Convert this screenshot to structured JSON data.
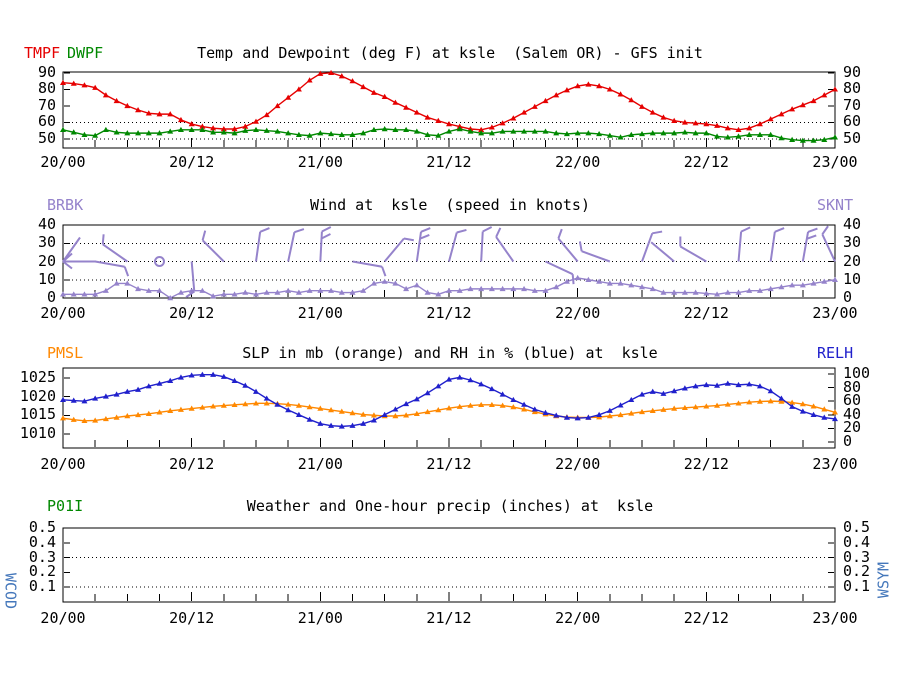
{
  "station": "ksle",
  "station_name": "Salem OR",
  "model": "GFS",
  "colors": {
    "temp": "#e60000",
    "dewpoint": "#008800",
    "wind": "#9583cb",
    "pressure": "#ff8800",
    "humidity": "#2020cc",
    "precip_label": "#008800",
    "side_label": "#4477bb",
    "axis": "#000000",
    "background": "#ffffff"
  },
  "side_labels": {
    "left": "WCOD",
    "right": "WSYM"
  },
  "x_axis": {
    "labels": [
      "20/00",
      "20/12",
      "21/00",
      "21/12",
      "22/00",
      "22/12",
      "23/00"
    ],
    "label_hours": [
      0,
      12,
      24,
      36,
      48,
      60,
      72
    ],
    "minor_tick_step_hours": 3,
    "hour_range": [
      0,
      72
    ]
  },
  "chart_data": [
    {
      "id": "temp_dew",
      "type": "line",
      "title": "Temp and Dewpoint (deg F) at ksle  (Salem OR) - GFS init",
      "legend_left": [
        "TMPF",
        "DWPF"
      ],
      "ylim": [
        44.5,
        90.5
      ],
      "yticks": [
        50,
        60,
        70,
        80,
        90
      ],
      "dotted_gridlines": [
        50,
        60
      ],
      "series": [
        {
          "name": "TMPF",
          "color_key": "temp",
          "values": [
            84,
            83.5,
            82.5,
            81,
            76.5,
            73,
            70,
            67.5,
            65.5,
            65,
            65,
            61.5,
            59,
            57.5,
            56.5,
            56,
            56,
            57.5,
            60.5,
            64.5,
            70,
            75,
            80,
            85.5,
            89.5,
            90,
            88,
            85,
            81.5,
            78,
            75.5,
            72,
            69,
            66,
            63,
            61,
            59,
            57.5,
            56,
            55.5,
            57,
            59.5,
            62.5,
            66,
            69.5,
            73,
            76.5,
            79.5,
            82,
            83,
            82,
            80,
            77,
            73.5,
            69.5,
            66,
            63,
            61,
            60,
            59.5,
            59,
            58,
            56.5,
            55.5,
            56.5,
            59,
            62,
            65,
            68,
            70.5,
            73,
            76.5,
            80
          ]
        },
        {
          "name": "DWPF",
          "color_key": "dewpoint",
          "values": [
            55.5,
            54,
            52.5,
            52,
            55.5,
            54,
            53.5,
            53.5,
            53.5,
            53.5,
            54.5,
            55.5,
            55.5,
            55.5,
            54,
            54,
            53.5,
            55,
            55.5,
            55,
            54.5,
            53.5,
            52.5,
            52,
            53.5,
            53,
            52.5,
            52.5,
            53.5,
            55.5,
            56,
            55.5,
            55.5,
            54.5,
            52.5,
            52,
            54.5,
            56,
            54.5,
            53.5,
            53.5,
            54.5,
            54.5,
            54.5,
            54.5,
            54.5,
            53.5,
            53,
            53.5,
            53.5,
            53,
            52,
            51,
            52.5,
            53,
            53.5,
            53.5,
            53.5,
            54,
            53.5,
            53.5,
            51.5,
            51,
            51.5,
            52.5,
            52.5,
            52.5,
            50.5,
            49.5,
            49,
            49,
            49.5,
            51
          ]
        }
      ]
    },
    {
      "id": "wind",
      "type": "line",
      "title": "Wind at  ksle  (speed in knots)",
      "legend_left": [
        "BRBK"
      ],
      "legend_right": [
        "SKNT"
      ],
      "ylim": [
        0,
        40
      ],
      "yticks": [
        0,
        10,
        20,
        30,
        40
      ],
      "dotted_gridlines": [
        10,
        20,
        30
      ],
      "series": [
        {
          "name": "SKNT",
          "color_key": "wind",
          "values": [
            2,
            2,
            2,
            2,
            4,
            8,
            8,
            5,
            4,
            4,
            0,
            3,
            4,
            4,
            1,
            2,
            2,
            3,
            2,
            3,
            3,
            4,
            3,
            4,
            4,
            4,
            3,
            3,
            4,
            8,
            9,
            8,
            5,
            7,
            3,
            2,
            4,
            4,
            5,
            5,
            5,
            5,
            5,
            5,
            4,
            4,
            6,
            9,
            11,
            10,
            9,
            8,
            8,
            7,
            6,
            5,
            3,
            3,
            3,
            3,
            2.5,
            2,
            3,
            3,
            4,
            4,
            5,
            6,
            7,
            7,
            8,
            9,
            10
          ]
        }
      ],
      "barbs": {
        "y_level": 20,
        "items": [
          {
            "h": 0,
            "segs": [
              [
                0,
                0,
                33,
                0
              ],
              [
                0,
                0,
                17,
                -24
              ],
              [
                0,
                0,
                9,
                -8
              ],
              [
                0,
                0,
                9,
                7
              ]
            ]
          },
          {
            "h": 3,
            "ang": 100,
            "feat": 1
          },
          {
            "h": 6,
            "ang": -55,
            "feat": 1
          },
          {
            "h": 9,
            "calm": true
          },
          {
            "h": 12,
            "ang": 175,
            "feat": 1
          },
          {
            "h": 15,
            "ang": -45,
            "feat": 1
          },
          {
            "h": 18,
            "ang": 8,
            "feat": 1
          },
          {
            "h": 21,
            "ang": 12,
            "feat": 1
          },
          {
            "h": 24,
            "ang": 3,
            "feat": 2
          },
          {
            "h": 27,
            "ang": 100,
            "feat": 1
          },
          {
            "h": 30,
            "ang": 40,
            "feat": 1
          },
          {
            "h": 33,
            "ang": 8,
            "feat": 2
          },
          {
            "h": 36,
            "ang": 15,
            "feat": 1
          },
          {
            "h": 39,
            "ang": 3,
            "feat": 1
          },
          {
            "h": 42,
            "ang": -35,
            "feat": 1
          },
          {
            "h": 45,
            "ang": 115,
            "feat": 1
          },
          {
            "h": 48,
            "ang": -40,
            "feat": 1
          },
          {
            "h": 51,
            "ang": -70,
            "feat": 1
          },
          {
            "h": 54,
            "ang": 20,
            "feat": 1
          },
          {
            "h": 57,
            "ang": -50,
            "feat": 0
          },
          {
            "h": 60,
            "ang": -60,
            "feat": 1
          },
          {
            "h": 63,
            "ang": 5,
            "feat": 1
          },
          {
            "h": 66,
            "ang": 8,
            "feat": 1
          },
          {
            "h": 69,
            "ang": 10,
            "feat": 2
          },
          {
            "h": 72,
            "ang": -25,
            "feat": 1
          }
        ]
      }
    },
    {
      "id": "slp_rh",
      "type": "line",
      "title": "SLP in mb (orange) and RH in % (blue) at  ksle",
      "legend_left": [
        "PMSL"
      ],
      "legend_right": [
        "RELH"
      ],
      "ylim_left": [
        1006.2,
        1027.7
      ],
      "yticks_left": [
        1010,
        1015,
        1020,
        1025
      ],
      "ylim_right": [
        -8.8,
        108.8
      ],
      "yticks_right": [
        0,
        20,
        40,
        60,
        80,
        100
      ],
      "dotted_gridlines": [],
      "series": [
        {
          "name": "PMSL",
          "axis": "left",
          "color_key": "pressure",
          "values": [
            1014.2,
            1013.8,
            1013.5,
            1013.6,
            1014.0,
            1014.4,
            1014.8,
            1015.1,
            1015.4,
            1015.8,
            1016.2,
            1016.5,
            1016.8,
            1017.1,
            1017.4,
            1017.6,
            1017.8,
            1018.0,
            1018.2,
            1018.2,
            1018.1,
            1017.9,
            1017.6,
            1017.2,
            1016.8,
            1016.4,
            1016.0,
            1015.6,
            1015.2,
            1015.0,
            1014.8,
            1014.8,
            1015.0,
            1015.4,
            1015.9,
            1016.4,
            1016.9,
            1017.3,
            1017.6,
            1017.8,
            1017.8,
            1017.6,
            1017.2,
            1016.6,
            1015.9,
            1015.3,
            1014.8,
            1014.5,
            1014.4,
            1014.4,
            1014.5,
            1014.8,
            1015.1,
            1015.5,
            1015.9,
            1016.2,
            1016.5,
            1016.8,
            1017.0,
            1017.2,
            1017.4,
            1017.6,
            1017.9,
            1018.2,
            1018.5,
            1018.7,
            1018.8,
            1018.7,
            1018.4,
            1018.0,
            1017.4,
            1016.6,
            1015.8
          ]
        },
        {
          "name": "RELH",
          "axis": "right",
          "color_key": "humidity",
          "values": [
            62,
            61,
            60,
            64,
            67,
            70,
            74,
            77,
            82,
            86,
            90,
            95,
            98,
            99,
            99,
            96,
            90,
            83,
            74,
            64,
            55,
            47,
            40,
            33,
            27,
            24,
            23,
            24,
            27,
            32,
            40,
            48,
            56,
            63,
            72,
            82,
            92,
            95,
            91,
            85,
            78,
            70,
            62,
            55,
            48,
            43,
            39,
            36,
            35,
            36,
            40,
            46,
            54,
            62,
            70,
            74,
            71,
            75,
            79,
            82,
            84,
            83,
            86,
            84,
            85,
            82,
            75,
            64,
            52,
            45,
            40,
            36,
            34
          ]
        }
      ]
    },
    {
      "id": "precip",
      "type": "line",
      "title": "Weather and One-hour precip (inches) at  ksle",
      "legend_left": [
        "P01I"
      ],
      "ylim": [
        0,
        0.5
      ],
      "yticks": [
        0.1,
        0.2,
        0.3,
        0.4,
        0.5
      ],
      "dotted_gridlines": [
        0.1,
        0.3
      ],
      "series": []
    }
  ]
}
